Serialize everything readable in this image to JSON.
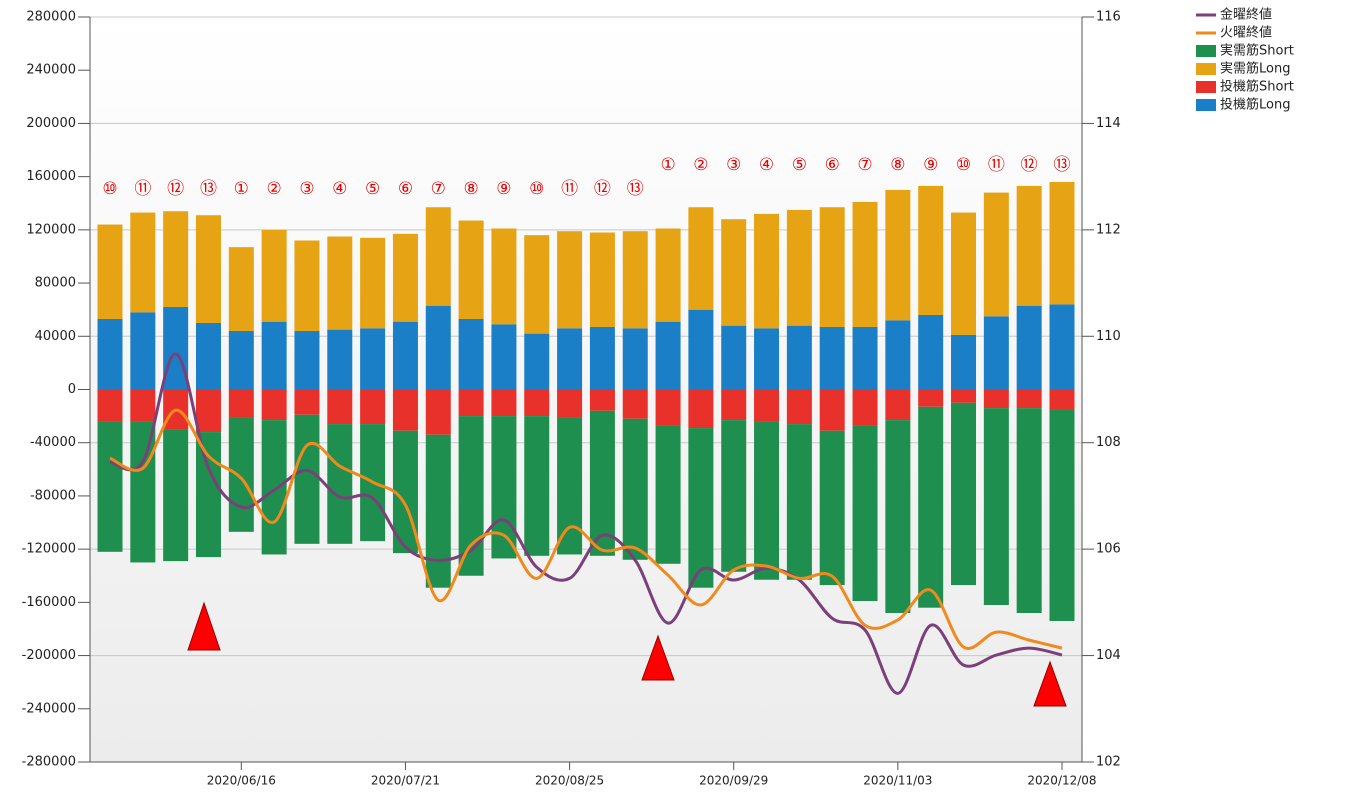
{
  "chart_data": {
    "type": "bar",
    "categories": [
      null,
      null,
      null,
      null,
      "2020/06/16",
      null,
      null,
      null,
      null,
      "2020/07/21",
      null,
      null,
      null,
      null,
      "2020/08/25",
      null,
      null,
      null,
      null,
      "2020/09/29",
      null,
      null,
      null,
      null,
      "2020/11/03",
      null,
      null,
      null,
      null,
      "2020/12/08"
    ],
    "bar_labels": [
      "⑩",
      "⑪",
      "⑫",
      "⑬",
      "①",
      "②",
      "③",
      "④",
      "⑤",
      "⑥",
      "⑦",
      "⑧",
      "⑨",
      "⑩",
      "⑪",
      "⑫",
      "⑬",
      "①",
      "②",
      "③",
      "④",
      "⑤",
      "⑥",
      "⑦",
      "⑧",
      "⑨",
      "⑩",
      "⑪",
      "⑫",
      "⑬"
    ],
    "series": [
      {
        "name": "金曜終値",
        "type": "line",
        "axis": "y2",
        "color": "#7b3f7a",
        "values": [
          107.64,
          107.64,
          109.67,
          107.52,
          106.79,
          107.11,
          107.48,
          106.98,
          106.96,
          106.04,
          105.79,
          105.98,
          106.55,
          105.66,
          105.45,
          106.26,
          105.79,
          104.61,
          105.61,
          105.42,
          105.64,
          105.42,
          104.7,
          104.48,
          103.29,
          104.57,
          103.82,
          104.01,
          104.14,
          104.01
        ]
      },
      {
        "name": "火曜終値",
        "type": "line",
        "axis": "y2",
        "color": "#f08a1c",
        "values": [
          107.71,
          107.52,
          108.61,
          107.75,
          107.33,
          106.51,
          107.95,
          107.56,
          107.26,
          106.83,
          105.04,
          106.08,
          106.26,
          105.45,
          106.41,
          105.98,
          106.02,
          105.51,
          104.95,
          105.61,
          105.68,
          105.45,
          105.49,
          104.57,
          104.67,
          105.23,
          104.16,
          104.44,
          104.29,
          104.14
        ]
      },
      {
        "name": "実需筋Short",
        "type": "bar",
        "color": "#1e8f4e",
        "values": [
          -98000,
          -106000,
          -99000,
          -94000,
          -86000,
          -101000,
          -97000,
          -90000,
          -88000,
          -92000,
          -115000,
          -120000,
          -107000,
          -105000,
          -103000,
          -109000,
          -106000,
          -104000,
          -120000,
          -114000,
          -119000,
          -117000,
          -116000,
          -132000,
          -145000,
          -151000,
          -137000,
          -148000,
          -154000,
          -159000
        ]
      },
      {
        "name": "実需筋Long",
        "type": "bar",
        "color": "#e6a314",
        "values": [
          71000,
          75000,
          72000,
          81000,
          63000,
          69000,
          68000,
          70000,
          68000,
          66000,
          74000,
          74000,
          72000,
          74000,
          73000,
          71000,
          73000,
          70000,
          77000,
          80000,
          86000,
          87000,
          90000,
          94000,
          98000,
          97000,
          92000,
          93000,
          90000,
          92000
        ]
      },
      {
        "name": "投機筋Short",
        "type": "bar",
        "color": "#e8312a",
        "values": [
          -24000,
          -24000,
          -30000,
          -32000,
          -21000,
          -23000,
          -19000,
          -26000,
          -26000,
          -31000,
          -34000,
          -20000,
          -20000,
          -20000,
          -21000,
          -16000,
          -22000,
          -27000,
          -29000,
          -23000,
          -24000,
          -26000,
          -31000,
          -27000,
          -23000,
          -13000,
          -10000,
          -14000,
          -14000,
          -15000
        ]
      },
      {
        "name": "投機筋Long",
        "type": "bar",
        "color": "#1a7fc6",
        "values": [
          53000,
          58000,
          62000,
          50000,
          44000,
          51000,
          44000,
          45000,
          46000,
          51000,
          63000,
          53000,
          49000,
          42000,
          46000,
          47000,
          46000,
          51000,
          60000,
          48000,
          46000,
          48000,
          47000,
          47000,
          52000,
          56000,
          41000,
          55000,
          63000,
          64000
        ]
      }
    ],
    "ylim": [
      -280000,
      280000
    ],
    "yticks": [
      -280000,
      -240000,
      -200000,
      -160000,
      -120000,
      -80000,
      -40000,
      0,
      40000,
      80000,
      120000,
      160000,
      200000,
      240000,
      280000
    ],
    "y2lim": [
      102,
      116
    ],
    "y2ticks": [
      102,
      104,
      106,
      108,
      110,
      112,
      114,
      116
    ],
    "grid": true,
    "legend": "top-right"
  }
}
